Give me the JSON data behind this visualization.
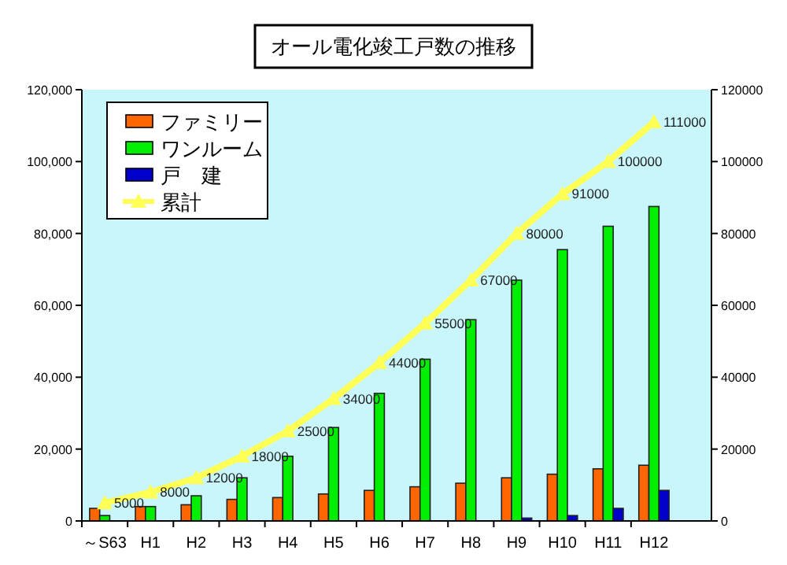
{
  "chart_data": {
    "type": "bar",
    "title": "オール電化竣工戸数の推移",
    "categories": [
      "～S63",
      "H1",
      "H2",
      "H3",
      "H4",
      "H5",
      "H6",
      "H7",
      "H8",
      "H9",
      "H10",
      "H11",
      "H12"
    ],
    "series": [
      {
        "name": "ファミリー",
        "color": "#ff6600",
        "values": [
          3500,
          4000,
          4500,
          6000,
          6500,
          7500,
          8500,
          9500,
          10500,
          12000,
          13000,
          14500,
          15500
        ]
      },
      {
        "name": "ワンルーム",
        "color": "#00ee00",
        "values": [
          1500,
          4000,
          7000,
          12000,
          18000,
          26000,
          35500,
          45000,
          56000,
          67000,
          75500,
          82000,
          87500
        ]
      },
      {
        "name": "戸　建",
        "color": "#0000cc",
        "values": [
          0,
          0,
          0,
          0,
          0,
          0,
          0,
          null,
          null,
          800,
          1500,
          3500,
          8500
        ]
      },
      {
        "name": "累計",
        "type": "line",
        "color": "#ffff55",
        "values": [
          5000,
          8000,
          12000,
          18000,
          25000,
          34000,
          44000,
          55000,
          67000,
          80000,
          91000,
          100000,
          111000
        ],
        "value_labels": [
          "5000",
          "8000",
          "12000",
          "18000",
          "25000",
          "34000",
          "44000",
          "55000",
          "67000",
          "80000",
          "91000",
          "100000",
          "111000"
        ]
      }
    ],
    "ylim": [
      0,
      120000
    ],
    "yticks": [
      0,
      {
        "value": 20000,
        "label": "20,000"
      },
      {
        "value": 40000,
        "label": "40,000"
      },
      {
        "value": 60000,
        "label": "60,000"
      },
      {
        "value": 80000,
        "label": "80,000"
      },
      {
        "value": 100000,
        "label": "100,000"
      },
      {
        "value": 120000,
        "label": "120,000"
      }
    ],
    "y2lim": [
      0,
      120000
    ],
    "y2ticks": [
      0,
      20000,
      40000,
      60000,
      80000,
      100000,
      120000
    ],
    "legend": "top left",
    "grid": false,
    "marker": "triangle"
  }
}
